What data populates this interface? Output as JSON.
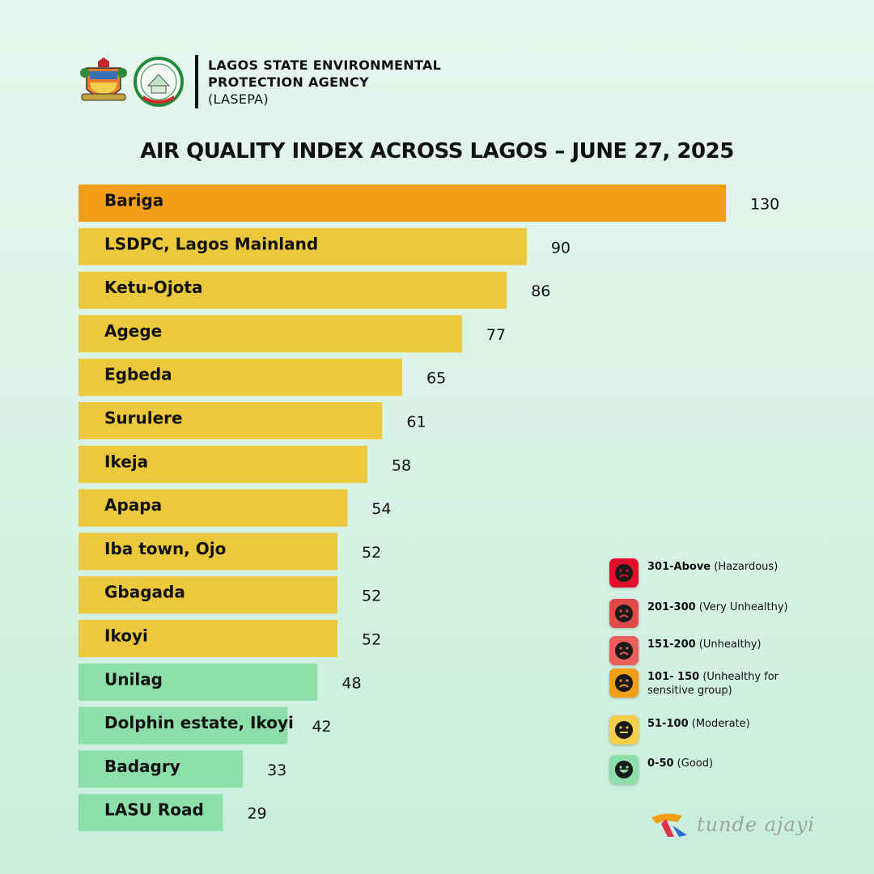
{
  "header": {
    "agency_line1": "LAGOS STATE ENVIRONMENTAL",
    "agency_line2": "PROTECTION AGENCY",
    "agency_abbr": "(LASEPA)",
    "logo_text": "LASEPA"
  },
  "chart_data": {
    "type": "bar",
    "orientation": "horizontal",
    "title": "AIR QUALITY INDEX ACROSS LAGOS – JUNE 27, 2025",
    "xlabel": "",
    "ylabel": "",
    "grid": false,
    "categories": [
      "Bariga",
      "LSDPC, Lagos Mainland",
      "Ketu-Ojota",
      "Agege",
      "Egbeda",
      "Surulere",
      "Ikeja",
      "Apapa",
      "Iba town, Ojo",
      "Gbagada",
      "Ikoyi",
      "Unilag",
      "Dolphin estate, Ikoyi",
      "Badagry",
      "LASU Road"
    ],
    "values": [
      130,
      90,
      86,
      77,
      65,
      61,
      58,
      54,
      52,
      52,
      52,
      48,
      42,
      33,
      29
    ],
    "bar_colors": [
      "#f29e17",
      "#ecc83c",
      "#ecc83c",
      "#ecc83c",
      "#ecc83c",
      "#ecc83c",
      "#ecc83c",
      "#ecc83c",
      "#ecc83c",
      "#ecc83c",
      "#ecc83c",
      "#8ddfaa",
      "#8ddfaa",
      "#8ddfaa",
      "#8ddfaa"
    ],
    "legend_placement": "bottom-right"
  },
  "legend": {
    "items": [
      {
        "range": "301-Above",
        "label": "(Hazardous)",
        "color": "#e0102a",
        "icon": "very-sad-face-icon"
      },
      {
        "range": "201-300",
        "label": "(Very Unhealthy)",
        "color": "#e04a48",
        "icon": "sad-face-icon"
      },
      {
        "range": "151-200",
        "label": "(Unhealthy)",
        "color": "#ea5f5a",
        "icon": "frown-face-icon"
      },
      {
        "range": "101- 150",
        "label": "(Unhealthy for sensitive group)",
        "color": "#f29e17",
        "icon": "worried-face-icon"
      },
      {
        "range": "51-100",
        "label": "(Moderate)",
        "color": "#f3cf4a",
        "icon": "neutral-faces-icon"
      },
      {
        "range": "0-50",
        "label": "(Good)",
        "color": "#8ddfaa",
        "icon": "smile-face-icon"
      }
    ]
  },
  "brand": {
    "name": "tunde ajayi"
  }
}
